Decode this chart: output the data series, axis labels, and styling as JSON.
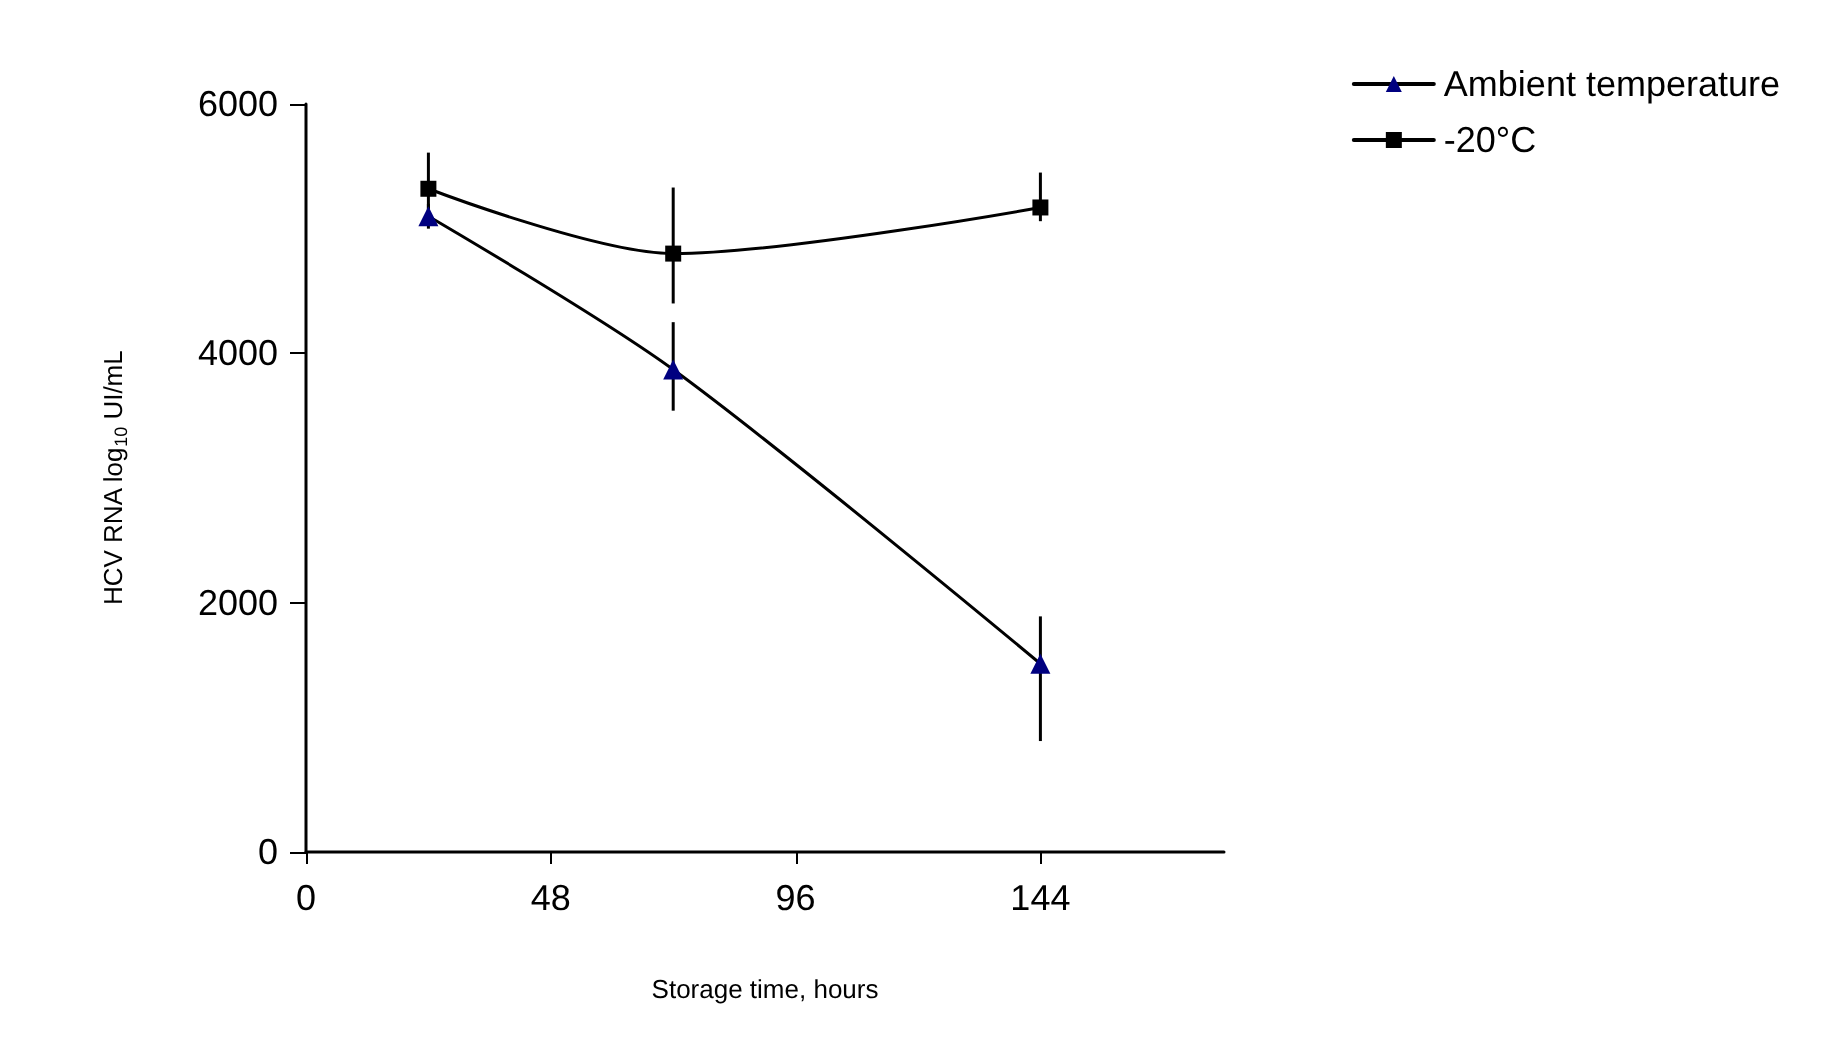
{
  "chart_data": {
    "type": "line",
    "xlabel": "Storage time, hours",
    "ylabel": "HCV RNA log$_{10}$ UI/mL",
    "x": [
      24,
      72,
      144
    ],
    "series": [
      {
        "name": "Ambient temperature",
        "color": "#000080",
        "marker": "triangle",
        "values": [
          5100,
          3870,
          1510
        ],
        "errors": [
          [
            5000,
            5200
          ],
          [
            3540,
            4250
          ],
          [
            890,
            1890
          ]
        ]
      },
      {
        "name": "-20°C",
        "color": "#000000",
        "marker": "square",
        "values": [
          5320,
          4800,
          5170
        ],
        "errors": [
          [
            5020,
            5610
          ],
          [
            4400,
            5330
          ],
          [
            5060,
            5450
          ]
        ]
      }
    ],
    "xlim": [
      0,
      180
    ],
    "xticks": [
      0,
      48,
      96,
      144
    ],
    "ylim": [
      0,
      6000
    ],
    "yticks": [
      0,
      2000,
      4000,
      6000
    ],
    "grid": false,
    "legend": "top right",
    "line_style": "solid"
  }
}
